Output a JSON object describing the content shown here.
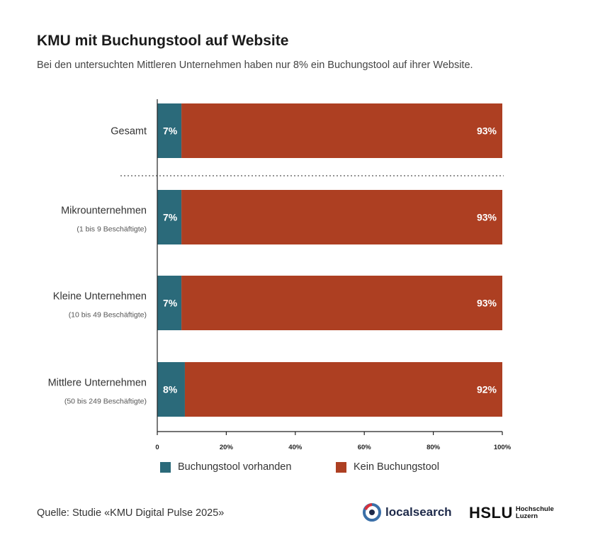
{
  "title": "KMU mit Buchungstool auf Website",
  "subtitle": "Bei den untersuchten Mittleren Unternehmen haben nur 8% ein Buchungstool auf ihrer Website.",
  "colors": {
    "vorhanden": "#2b6a7a",
    "kein": "#ad3f22"
  },
  "chart_data": {
    "type": "bar",
    "orientation": "horizontal",
    "stacked": true,
    "categories": [
      {
        "label": "Gesamt",
        "sublabel": ""
      },
      {
        "label": "Mikrounternehmen",
        "sublabel": "(1 bis 9 Beschäftigte)"
      },
      {
        "label": "Kleine Unternehmen",
        "sublabel": "(10 bis 49 Beschäftigte)"
      },
      {
        "label": "Mittlere Unternehmen",
        "sublabel": "(50 bis 249 Beschäftigte)"
      }
    ],
    "series": [
      {
        "name": "Buchungstool vorhanden",
        "values": [
          7,
          7,
          7,
          8
        ],
        "labels": [
          "7%",
          "7%",
          "7%",
          "8%"
        ]
      },
      {
        "name": "Kein Buchungstool",
        "values": [
          93,
          93,
          93,
          92
        ],
        "labels": [
          "93%",
          "93%",
          "93%",
          "92%"
        ]
      }
    ],
    "xlim": [
      0,
      100
    ],
    "xticks": [
      "0",
      "20%",
      "40%",
      "60%",
      "80%",
      "100%"
    ],
    "legend_position": "bottom"
  },
  "legend": [
    {
      "label": "Buchungstool vorhanden"
    },
    {
      "label": "Kein Buchungstool"
    }
  ],
  "source": "Quelle: Studie «KMU Digital Pulse 2025»",
  "logos": {
    "localsearch": "localsearch",
    "hslu": "HSLU",
    "hslu_line1": "Hochschule",
    "hslu_line2": "Luzern"
  }
}
